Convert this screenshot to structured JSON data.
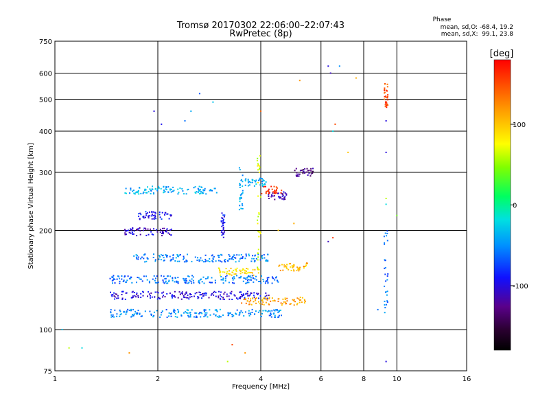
{
  "chart_data": {
    "type": "scatter",
    "title": "Tromsø 20170302 22:06:00–22:07:43",
    "subtitle": "RwPretec (8p)",
    "xlabel": "Frequency [MHz]",
    "ylabel": "Stationary phase Virtual Height [km]",
    "x_scale": "log",
    "y_scale": "log",
    "xlim": [
      1,
      16
    ],
    "ylim": [
      75,
      750
    ],
    "x_ticks": [
      1,
      2,
      4,
      6,
      8,
      10,
      16
    ],
    "y_ticks": [
      75,
      100,
      200,
      300,
      400,
      500,
      600,
      750
    ],
    "grid": true,
    "phase_info": {
      "header": "Phase",
      "line1": "mean, sd,O: -68.4, 19.2",
      "line2": "mean, sd,X:  99.1, 23.8"
    },
    "colorbar": {
      "label": "[deg]",
      "range": [
        -180,
        180
      ],
      "ticks": [
        100,
        0,
        -100
      ]
    },
    "traces": [
      {
        "f_from": 1.45,
        "f_to": 4.6,
        "height": 112,
        "phase": -50
      },
      {
        "f_from": 1.45,
        "f_to": 4.3,
        "height": 127,
        "phase": -100
      },
      {
        "f_from": 1.45,
        "f_to": 4.5,
        "height": 142,
        "phase": -60
      },
      {
        "f_from": 1.7,
        "f_to": 4.2,
        "height": 165,
        "phase": -55
      },
      {
        "f_from": 1.6,
        "f_to": 2.2,
        "height": 198,
        "phase": -105
      },
      {
        "f_from": 1.75,
        "f_to": 2.2,
        "height": 222,
        "phase": -90
      },
      {
        "f_from": 1.6,
        "f_to": 3.0,
        "height": 265,
        "phase": -40
      },
      {
        "f_from": 3.0,
        "f_to": 4.0,
        "height": 150,
        "phase": 90
      },
      {
        "f_from": 3.5,
        "f_to": 5.4,
        "height": 122,
        "phase": 115
      },
      {
        "f_from": 4.5,
        "f_to": 5.5,
        "height": 155,
        "phase": 110
      },
      {
        "f_from": 4.2,
        "f_to": 4.8,
        "height": 255,
        "phase": -115
      },
      {
        "f_from": 4.0,
        "f_to": 4.6,
        "height": 265,
        "phase": 165
      },
      {
        "f_from": 5.0,
        "f_to": 5.7,
        "height": 300,
        "phase": -130
      },
      {
        "f_from": 3.6,
        "f_to": 4.2,
        "height": 280,
        "phase": -40
      }
    ],
    "columns": [
      {
        "f": 3.95,
        "h_from": 150,
        "h_to": 340,
        "phase": 70
      },
      {
        "f": 3.5,
        "h_from": 230,
        "h_to": 310,
        "phase": -40
      },
      {
        "f": 3.1,
        "h_from": 190,
        "h_to": 230,
        "phase": -90
      },
      {
        "f": 9.3,
        "h_from": 110,
        "h_to": 200,
        "phase": -60
      },
      {
        "f": 9.3,
        "h_from": 470,
        "h_to": 560,
        "phase": 150
      }
    ],
    "points": [
      {
        "x": 1.05,
        "y": 100,
        "phase": -30
      },
      {
        "x": 1.1,
        "y": 88,
        "phase": 60
      },
      {
        "x": 1.2,
        "y": 88,
        "phase": -20
      },
      {
        "x": 1.65,
        "y": 85,
        "phase": 120
      },
      {
        "x": 1.95,
        "y": 460,
        "phase": -100
      },
      {
        "x": 2.05,
        "y": 420,
        "phase": -95
      },
      {
        "x": 2.5,
        "y": 460,
        "phase": -40
      },
      {
        "x": 2.65,
        "y": 520,
        "phase": -70
      },
      {
        "x": 2.4,
        "y": 430,
        "phase": -60
      },
      {
        "x": 2.9,
        "y": 490,
        "phase": -30
      },
      {
        "x": 4.0,
        "y": 460,
        "phase": 140
      },
      {
        "x": 5.2,
        "y": 570,
        "phase": 120
      },
      {
        "x": 6.3,
        "y": 630,
        "phase": -100
      },
      {
        "x": 6.4,
        "y": 600,
        "phase": -110
      },
      {
        "x": 6.8,
        "y": 630,
        "phase": -50
      },
      {
        "x": 7.6,
        "y": 580,
        "phase": 110
      },
      {
        "x": 6.6,
        "y": 420,
        "phase": 150
      },
      {
        "x": 6.5,
        "y": 400,
        "phase": -20
      },
      {
        "x": 7.2,
        "y": 345,
        "phase": 100
      },
      {
        "x": 9.3,
        "y": 430,
        "phase": -100
      },
      {
        "x": 9.3,
        "y": 345,
        "phase": -100
      },
      {
        "x": 9.3,
        "y": 250,
        "phase": 60
      },
      {
        "x": 9.3,
        "y": 240,
        "phase": -20
      },
      {
        "x": 10.0,
        "y": 222,
        "phase": 40
      },
      {
        "x": 6.5,
        "y": 190,
        "phase": 160
      },
      {
        "x": 6.3,
        "y": 185,
        "phase": -110
      },
      {
        "x": 8.8,
        "y": 115,
        "phase": -60
      },
      {
        "x": 9.3,
        "y": 80,
        "phase": -100
      },
      {
        "x": 4.5,
        "y": 200,
        "phase": 100
      },
      {
        "x": 5.0,
        "y": 210,
        "phase": 110
      },
      {
        "x": 3.3,
        "y": 90,
        "phase": 150
      },
      {
        "x": 3.6,
        "y": 85,
        "phase": 120
      },
      {
        "x": 3.2,
        "y": 80,
        "phase": 60
      }
    ]
  }
}
